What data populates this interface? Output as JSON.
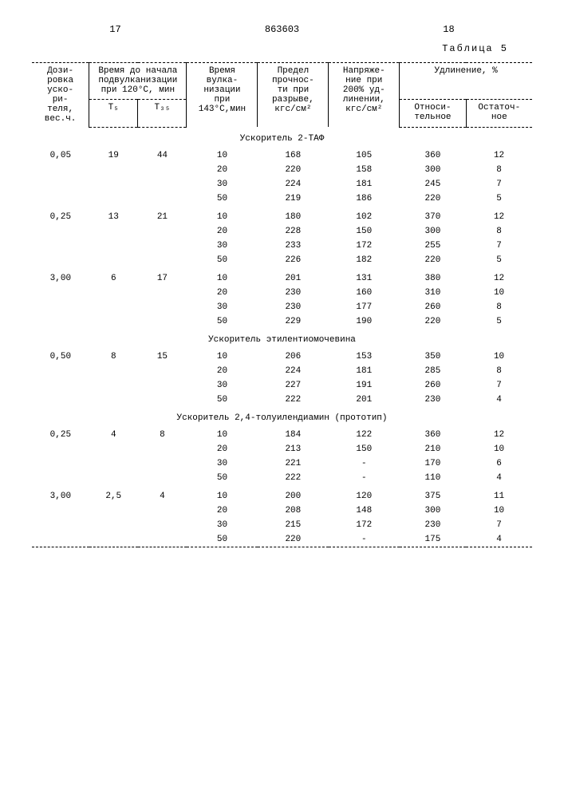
{
  "header": {
    "page_left": "17",
    "doc_number": "863603",
    "page_right": "18",
    "table_label": "Таблица 5"
  },
  "columns": {
    "c1": "Дози-\nровка\nуско-\nри-\nтеля,\nвес.ч.",
    "c2": "Время до начала\nподвулканизации\nпри 120°С, мин",
    "c2a": "Т₅",
    "c2b": "Т₃₅",
    "c3": "Время\nвулка-\nнизации\nпри\n143°С,мин",
    "c4": "Предел\nпрочнос-\nти при\nразрыве,\nкгс/см²",
    "c5": "Напряже-\nние при\n200% уд-\nлинении,\nкгс/см²",
    "c6": "Удлинение, %",
    "c6a": "Относи-\nтельное",
    "c6b": "Остаточ-\nное"
  },
  "sections": [
    {
      "title": "Ускоритель 2-ТАФ",
      "groups": [
        {
          "dose": "0,05",
          "t5": "19",
          "t35": "44",
          "rows": [
            [
              "10",
              "168",
              "105",
              "360",
              "12"
            ],
            [
              "20",
              "220",
              "158",
              "300",
              "8"
            ],
            [
              "30",
              "224",
              "181",
              "245",
              "7"
            ],
            [
              "50",
              "219",
              "186",
              "220",
              "5"
            ]
          ]
        },
        {
          "dose": "0,25",
          "t5": "13",
          "t35": "21",
          "rows": [
            [
              "10",
              "180",
              "102",
              "370",
              "12"
            ],
            [
              "20",
              "228",
              "150",
              "300",
              "8"
            ],
            [
              "30",
              "233",
              "172",
              "255",
              "7"
            ],
            [
              "50",
              "226",
              "182",
              "220",
              "5"
            ]
          ]
        },
        {
          "dose": "3,00",
          "t5": "6",
          "t35": "17",
          "rows": [
            [
              "10",
              "201",
              "131",
              "380",
              "12"
            ],
            [
              "20",
              "230",
              "160",
              "310",
              "10"
            ],
            [
              "30",
              "230",
              "177",
              "260",
              "8"
            ],
            [
              "50",
              "229",
              "190",
              "220",
              "5"
            ]
          ]
        }
      ]
    },
    {
      "title": "Ускоритель этилентиомочевина",
      "groups": [
        {
          "dose": "0,50",
          "t5": "8",
          "t35": "15",
          "rows": [
            [
              "10",
              "206",
              "153",
              "350",
              "10"
            ],
            [
              "20",
              "224",
              "181",
              "285",
              "8"
            ],
            [
              "30",
              "227",
              "191",
              "260",
              "7"
            ],
            [
              "50",
              "222",
              "201",
              "230",
              "4"
            ]
          ]
        }
      ]
    },
    {
      "title": "Ускоритель 2,4-толуилендиамин (прототип)",
      "groups": [
        {
          "dose": "0,25",
          "t5": "4",
          "t35": "8",
          "rows": [
            [
              "10",
              "184",
              "122",
              "360",
              "12"
            ],
            [
              "20",
              "213",
              "150",
              "210",
              "10"
            ],
            [
              "30",
              "221",
              "-",
              "170",
              "6"
            ],
            [
              "50",
              "222",
              "-",
              "110",
              "4"
            ]
          ]
        },
        {
          "dose": "3,00",
          "t5": "2,5",
          "t35": "4",
          "rows": [
            [
              "10",
              "200",
              "120",
              "375",
              "11"
            ],
            [
              "20",
              "208",
              "148",
              "300",
              "10"
            ],
            [
              "30",
              "215",
              "172",
              "230",
              "7"
            ],
            [
              "50",
              "220",
              "-",
              "175",
              "4"
            ]
          ]
        }
      ]
    }
  ]
}
